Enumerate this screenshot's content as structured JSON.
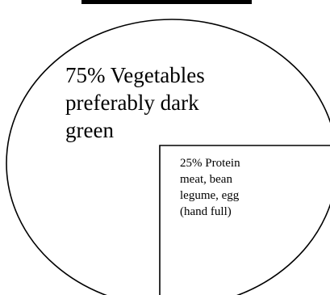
{
  "diagram": {
    "vegetables": {
      "lines": [
        "75% Vegetables",
        "preferably dark",
        "green"
      ]
    },
    "protein": {
      "lines": [
        "25% Protein",
        "meat, bean",
        "legume, egg",
        "(hand full)"
      ]
    },
    "colors": {
      "stroke": "#000000",
      "background": "#ffffff"
    }
  }
}
